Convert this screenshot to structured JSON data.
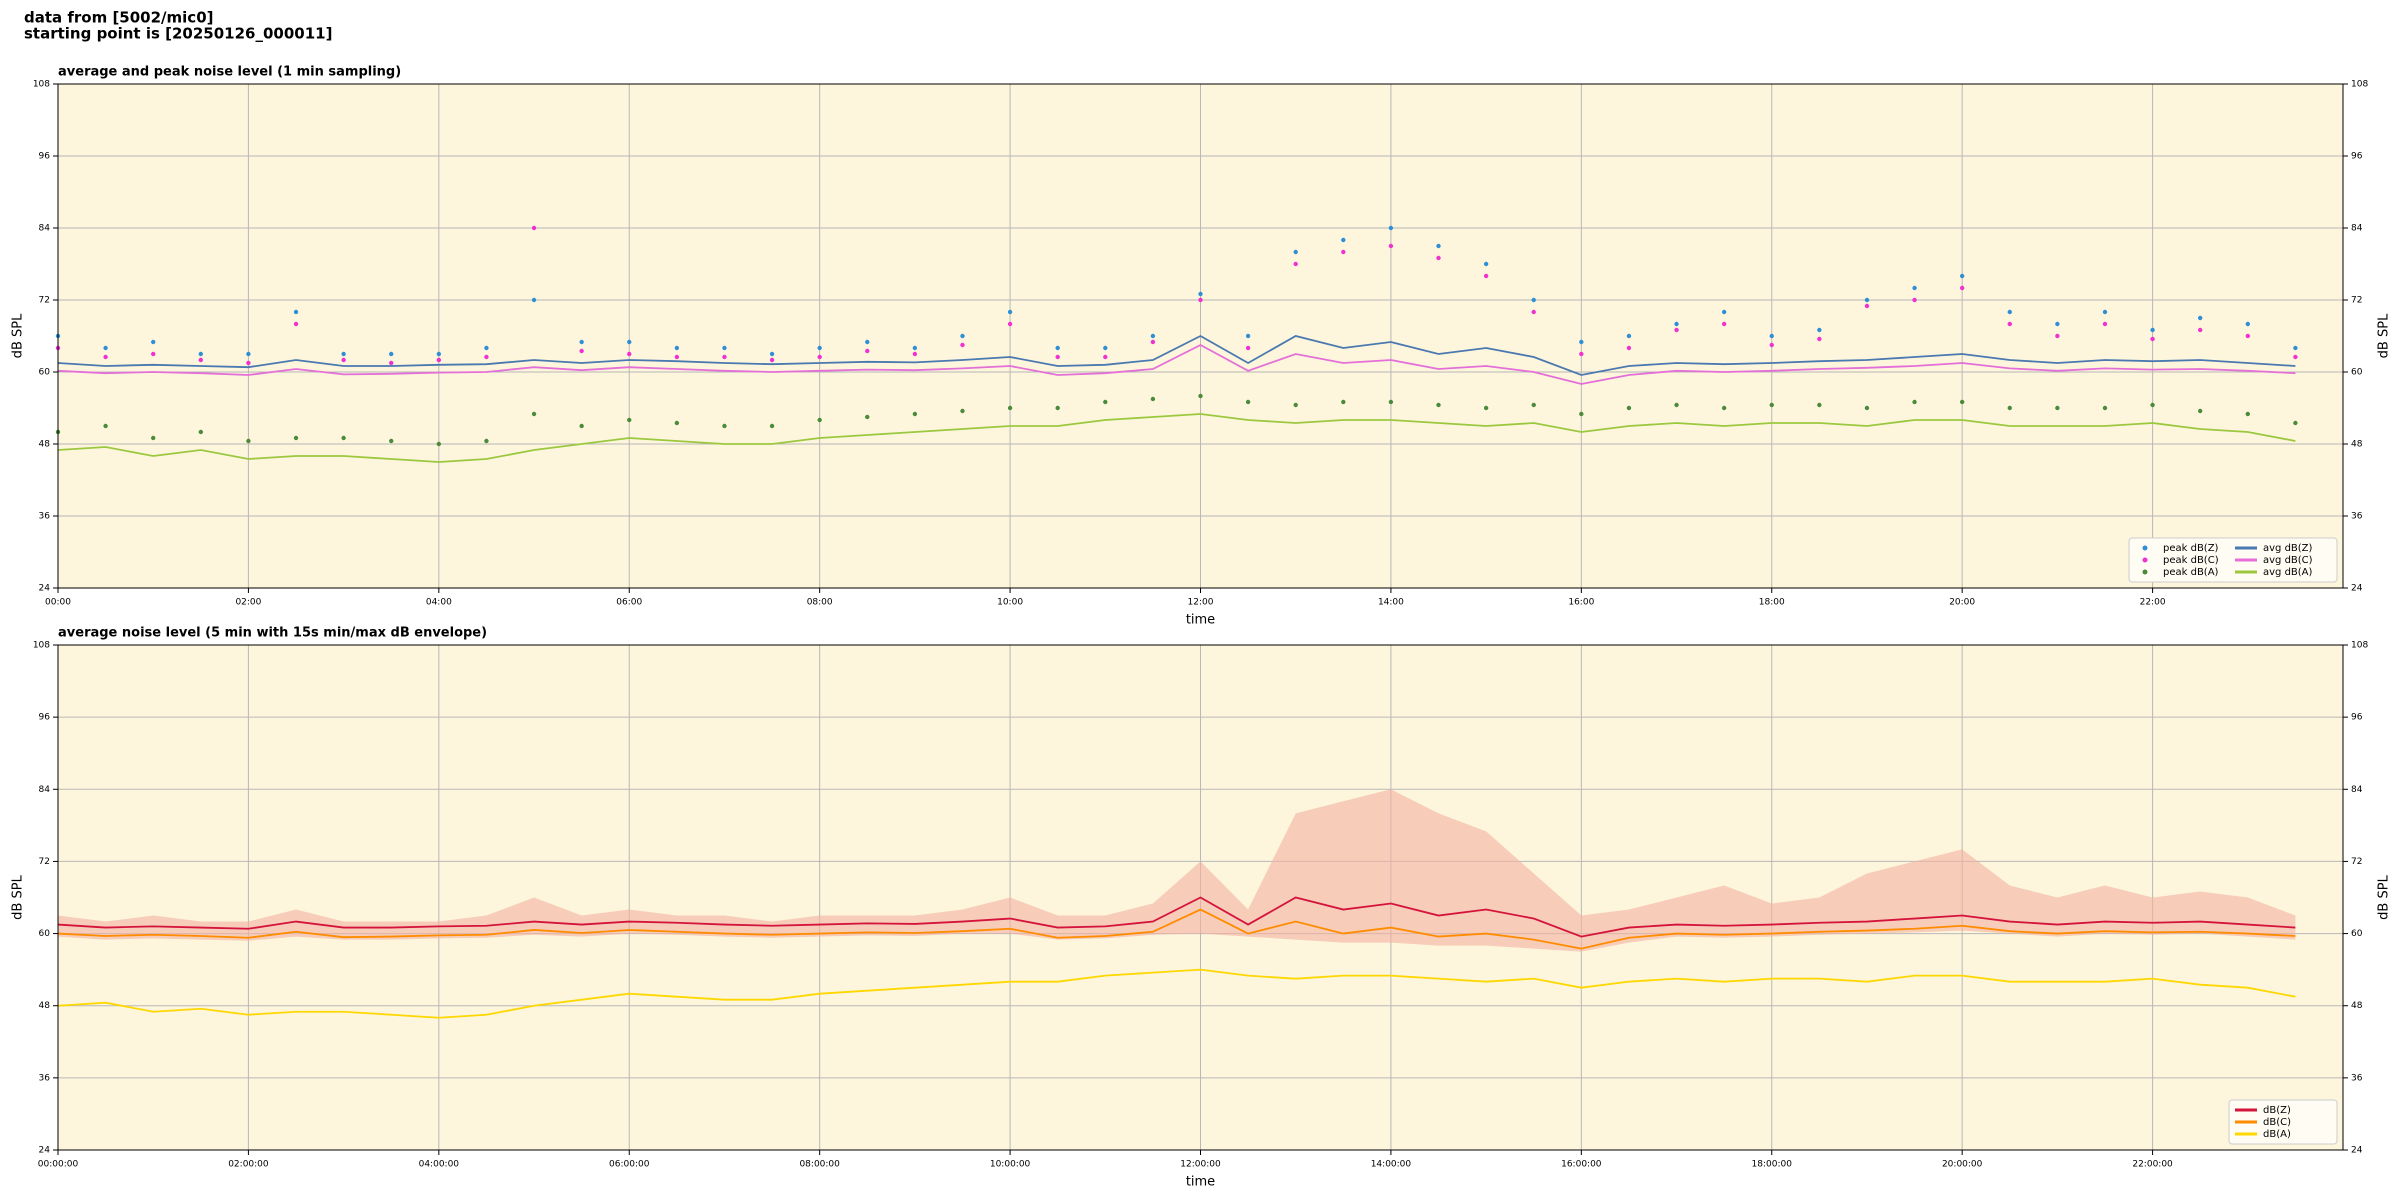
{
  "header": {
    "source": "data from [5002/mic0]",
    "start": "starting point is [20250126_000011]"
  },
  "chart_data": [
    {
      "type": "line",
      "title": "average and peak noise level (1 min sampling)",
      "xlabel": "time",
      "ylabel": "dB SPL",
      "y2label": "dB SPL",
      "xlim": [
        0,
        24
      ],
      "ylim": [
        24,
        108
      ],
      "yticks": [
        24,
        36,
        48,
        60,
        72,
        84,
        96,
        108
      ],
      "y2lim": [
        24,
        108
      ],
      "y2ticks": [
        24,
        36,
        48,
        60,
        72,
        84,
        96,
        108
      ],
      "xticks": [
        {
          "value": 0,
          "label": "00:00"
        },
        {
          "value": 2,
          "label": "02:00"
        },
        {
          "value": 4,
          "label": "04:00"
        },
        {
          "value": 6,
          "label": "06:00"
        },
        {
          "value": 8,
          "label": "08:00"
        },
        {
          "value": 10,
          "label": "10:00"
        },
        {
          "value": 12,
          "label": "12:00"
        },
        {
          "value": 14,
          "label": "14:00"
        },
        {
          "value": 16,
          "label": "16:00"
        },
        {
          "value": 18,
          "label": "18:00"
        },
        {
          "value": 20,
          "label": "20:00"
        },
        {
          "value": 22,
          "label": "22:00"
        }
      ],
      "grid": true,
      "background": "#fdf6dc",
      "legend": "lower right",
      "x": [
        0,
        0.5,
        1,
        1.5,
        2,
        2.5,
        3,
        3.5,
        4,
        4.5,
        5,
        5.5,
        6,
        6.5,
        7,
        7.5,
        8,
        8.5,
        9,
        9.5,
        10,
        10.5,
        11,
        11.5,
        12,
        12.5,
        13,
        13.5,
        14,
        14.5,
        15,
        15.5,
        16,
        16.5,
        17,
        17.5,
        18,
        18.5,
        19,
        19.5,
        20,
        20.5,
        21,
        21.5,
        22,
        22.5,
        23,
        23.5
      ],
      "series": [
        {
          "name": "peak dB(Z)",
          "style": "dots",
          "color": "#2e8fd6",
          "values": [
            66,
            64,
            65,
            63,
            63,
            70,
            63,
            63,
            63,
            64,
            72,
            65,
            65,
            64,
            64,
            63,
            64,
            65,
            64,
            66,
            70,
            64,
            64,
            66,
            73,
            66,
            80,
            82,
            84,
            81,
            78,
            72,
            65,
            66,
            68,
            70,
            66,
            67,
            72,
            74,
            76,
            70,
            68,
            70,
            67,
            69,
            68,
            64
          ]
        },
        {
          "name": "peak dB(C)",
          "style": "dots",
          "color": "#f030d0",
          "values": [
            64,
            62.5,
            63,
            62,
            61.5,
            68,
            62,
            61.5,
            62,
            62.5,
            84,
            63.5,
            63,
            62.5,
            62.5,
            62,
            62.5,
            63.5,
            63,
            64.5,
            68,
            62.5,
            62.5,
            65,
            72,
            64,
            78,
            80,
            81,
            79,
            76,
            70,
            63,
            64,
            67,
            68,
            64.5,
            65.5,
            71,
            72,
            74,
            68,
            66,
            68,
            65.5,
            67,
            66,
            62.5
          ]
        },
        {
          "name": "peak dB(A)",
          "style": "dots",
          "color": "#4a8a3a",
          "values": [
            50,
            51,
            49,
            50,
            48.5,
            49,
            49,
            48.5,
            48,
            48.5,
            53,
            51,
            52,
            51.5,
            51,
            51,
            52,
            52.5,
            53,
            53.5,
            54,
            54,
            55,
            55.5,
            56,
            55,
            54.5,
            55,
            55,
            54.5,
            54,
            54.5,
            53,
            54,
            54.5,
            54,
            54.5,
            54.5,
            54,
            55,
            55,
            54,
            54,
            54,
            54.5,
            53.5,
            53,
            51.5
          ]
        },
        {
          "name": "avg dB(Z)",
          "style": "line",
          "color": "#4a78b0",
          "values": [
            61.5,
            61,
            61.2,
            61,
            60.8,
            62,
            61,
            61,
            61.2,
            61.3,
            62,
            61.5,
            62,
            61.8,
            61.5,
            61.3,
            61.5,
            61.7,
            61.6,
            62,
            62.5,
            61,
            61.2,
            62,
            66,
            61.5,
            66,
            64,
            65,
            63,
            64,
            62.5,
            59.5,
            61,
            61.5,
            61.3,
            61.5,
            61.8,
            62,
            62.5,
            63,
            62,
            61.5,
            62,
            61.8,
            62,
            61.5,
            61
          ]
        },
        {
          "name": "avg dB(C)",
          "style": "line",
          "color": "#e46fd8",
          "values": [
            60.2,
            59.8,
            60,
            59.8,
            59.5,
            60.5,
            59.6,
            59.7,
            59.9,
            60,
            60.8,
            60.3,
            60.8,
            60.5,
            60.2,
            60,
            60.2,
            60.4,
            60.3,
            60.6,
            61,
            59.5,
            59.8,
            60.5,
            64.5,
            60.2,
            63,
            61.5,
            62,
            60.5,
            61,
            60,
            58,
            59.5,
            60.2,
            60,
            60.2,
            60.5,
            60.7,
            61,
            61.5,
            60.6,
            60.2,
            60.6,
            60.4,
            60.5,
            60.2,
            59.8
          ]
        },
        {
          "name": "avg dB(A)",
          "style": "line",
          "color": "#9cc840",
          "values": [
            47,
            47.5,
            46,
            47,
            45.5,
            46,
            46,
            45.5,
            45,
            45.5,
            47,
            48,
            49,
            48.5,
            48,
            48,
            49,
            49.5,
            50,
            50.5,
            51,
            51,
            52,
            52.5,
            53,
            52,
            51.5,
            52,
            52,
            51.5,
            51,
            51.5,
            50,
            51,
            51.5,
            51,
            51.5,
            51.5,
            51,
            52,
            52,
            51,
            51,
            51,
            51.5,
            50.5,
            50,
            48.5
          ]
        }
      ]
    },
    {
      "type": "line",
      "title": "average noise level (5 min with 15s min/max dB envelope)",
      "xlabel": "time",
      "ylabel": "dB SPL",
      "y2label": "dB SPL",
      "xlim": [
        0,
        24
      ],
      "ylim": [
        24,
        108
      ],
      "yticks": [
        24,
        36,
        48,
        60,
        72,
        84,
        96,
        108
      ],
      "y2lim": [
        24,
        108
      ],
      "y2ticks": [
        24,
        36,
        48,
        60,
        72,
        84,
        96,
        108
      ],
      "xticks": [
        {
          "value": 0,
          "label": "00:00:00"
        },
        {
          "value": 2,
          "label": "02:00:00"
        },
        {
          "value": 4,
          "label": "04:00:00"
        },
        {
          "value": 6,
          "label": "06:00:00"
        },
        {
          "value": 8,
          "label": "08:00:00"
        },
        {
          "value": 10,
          "label": "10:00:00"
        },
        {
          "value": 12,
          "label": "12:00:00"
        },
        {
          "value": 14,
          "label": "14:00:00"
        },
        {
          "value": 16,
          "label": "16:00:00"
        },
        {
          "value": 18,
          "label": "18:00:00"
        },
        {
          "value": 20,
          "label": "20:00:00"
        },
        {
          "value": 22,
          "label": "22:00:00"
        }
      ],
      "grid": true,
      "background": "#fdf6dc",
      "legend": "lower right",
      "x": [
        0,
        0.5,
        1,
        1.5,
        2,
        2.5,
        3,
        3.5,
        4,
        4.5,
        5,
        5.5,
        6,
        6.5,
        7,
        7.5,
        8,
        8.5,
        9,
        9.5,
        10,
        10.5,
        11,
        11.5,
        12,
        12.5,
        13,
        13.5,
        14,
        14.5,
        15,
        15.5,
        16,
        16.5,
        17,
        17.5,
        18,
        18.5,
        19,
        19.5,
        20,
        20.5,
        21,
        21.5,
        22,
        22.5,
        23,
        23.5
      ],
      "envelope": {
        "color": "#f4b0a0",
        "max": [
          63,
          62,
          63,
          62,
          62,
          64,
          62,
          62,
          62,
          63,
          66,
          63,
          64,
          63,
          63,
          62,
          63,
          63,
          63,
          64,
          66,
          63,
          63,
          65,
          72,
          64,
          80,
          82,
          84,
          80,
          77,
          70,
          63,
          64,
          66,
          68,
          65,
          66,
          70,
          72,
          74,
          68,
          66,
          68,
          66,
          67,
          66,
          63
        ],
        "min": [
          59.5,
          59,
          59.2,
          59,
          58.8,
          59.5,
          59,
          59,
          59.2,
          59.3,
          59.8,
          59.5,
          60,
          59.8,
          59.5,
          59.3,
          59.5,
          59.7,
          59.6,
          60,
          60,
          59,
          59.2,
          59.8,
          60,
          59.5,
          59,
          58.5,
          58.5,
          58,
          58,
          57.5,
          57,
          58.5,
          59.5,
          59.3,
          59.5,
          59.8,
          60,
          60.2,
          60.5,
          60,
          59.5,
          60,
          59.8,
          60,
          59.5,
          59
        ]
      },
      "series": [
        {
          "name": "dB(Z)",
          "style": "line",
          "color": "#d4143c",
          "values": [
            61.5,
            61,
            61.2,
            61,
            60.8,
            62,
            61,
            61,
            61.2,
            61.3,
            62,
            61.5,
            62,
            61.8,
            61.5,
            61.3,
            61.5,
            61.7,
            61.6,
            62,
            62.5,
            61,
            61.2,
            62,
            66,
            61.5,
            66,
            64,
            65,
            63,
            64,
            62.5,
            59.5,
            61,
            61.5,
            61.3,
            61.5,
            61.8,
            62,
            62.5,
            63,
            62,
            61.5,
            62,
            61.8,
            62,
            61.5,
            61
          ]
        },
        {
          "name": "dB(C)",
          "style": "line",
          "color": "#ff8c00",
          "values": [
            60,
            59.6,
            59.8,
            59.6,
            59.3,
            60.3,
            59.4,
            59.5,
            59.7,
            59.8,
            60.6,
            60.1,
            60.6,
            60.3,
            60,
            59.8,
            60,
            60.2,
            60.1,
            60.4,
            60.8,
            59.3,
            59.6,
            60.3,
            64,
            60,
            62,
            60,
            61,
            59.5,
            60,
            59,
            57.5,
            59.3,
            60,
            59.8,
            60,
            60.3,
            60.5,
            60.8,
            61.3,
            60.4,
            60,
            60.4,
            60.2,
            60.3,
            60,
            59.6
          ]
        },
        {
          "name": "dB(A)",
          "style": "line",
          "color": "#ffd700",
          "values": [
            48,
            48.5,
            47,
            47.5,
            46.5,
            47,
            47,
            46.5,
            46,
            46.5,
            48,
            49,
            50,
            49.5,
            49,
            49,
            50,
            50.5,
            51,
            51.5,
            52,
            52,
            53,
            53.5,
            54,
            53,
            52.5,
            53,
            53,
            52.5,
            52,
            52.5,
            51,
            52,
            52.5,
            52,
            52.5,
            52.5,
            52,
            53,
            53,
            52,
            52,
            52,
            52.5,
            51.5,
            51,
            49.5
          ]
        }
      ]
    }
  ]
}
